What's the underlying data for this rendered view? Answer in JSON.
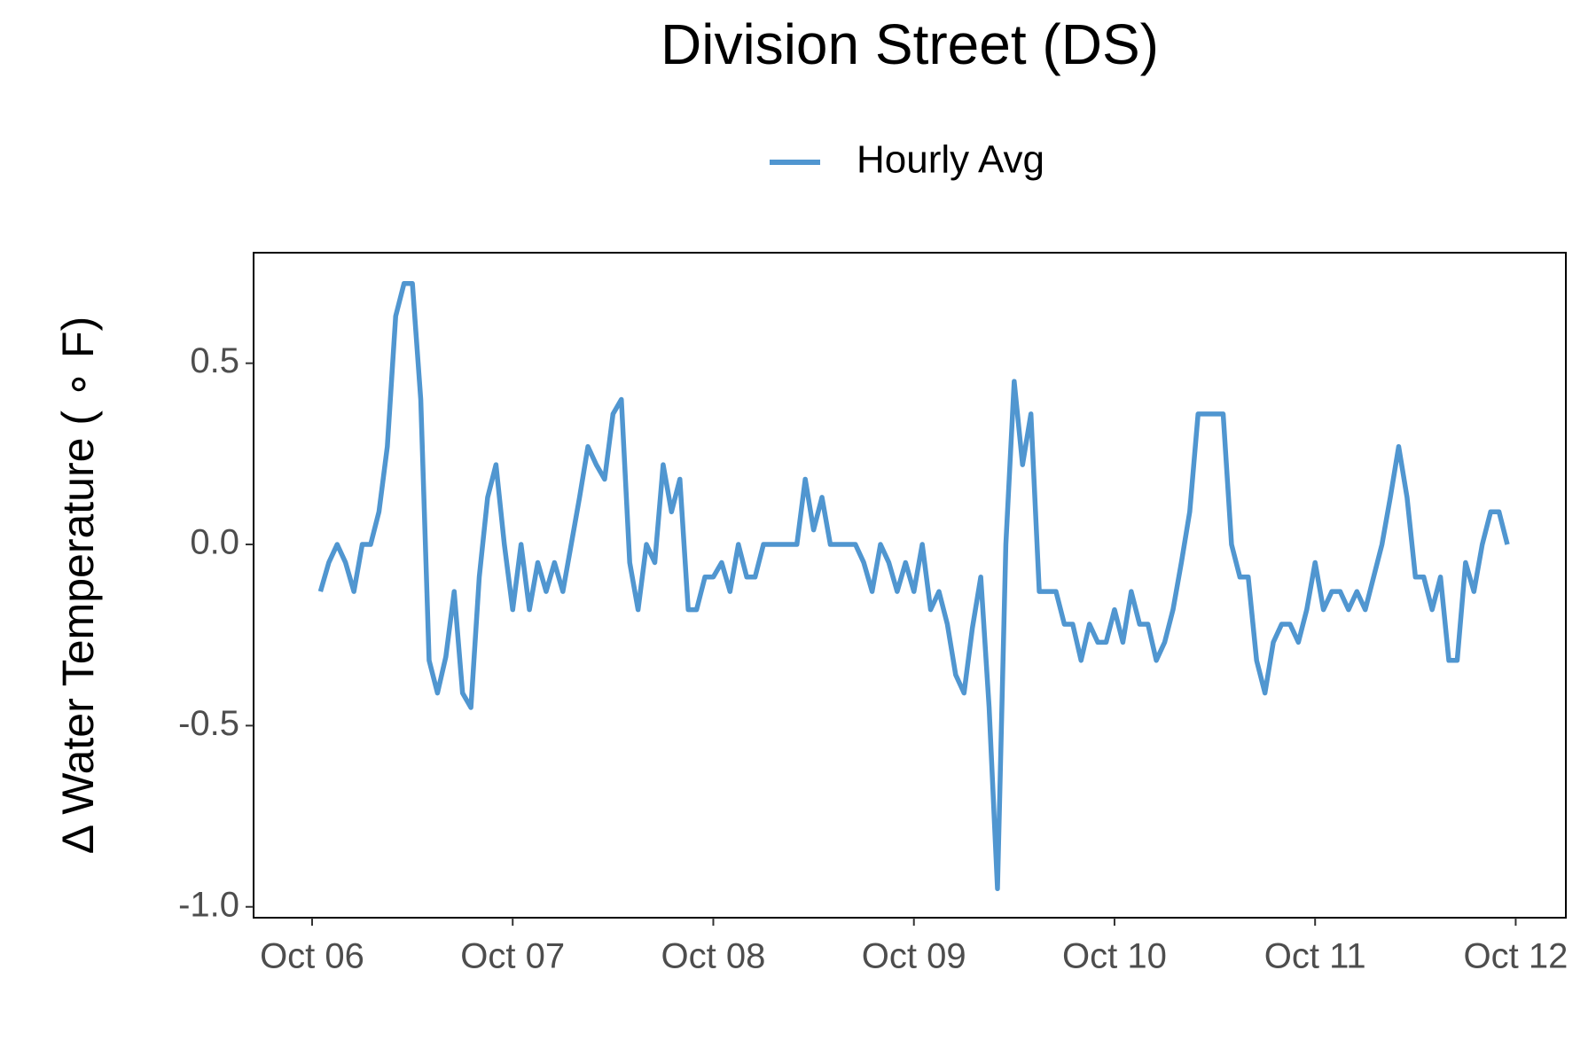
{
  "chart_data": {
    "type": "line",
    "title": "Division Street (DS)",
    "y_label": "Δ Water Temperature ( ∘ F)",
    "x": [
      1,
      2,
      3,
      4,
      5,
      6,
      7,
      8,
      9,
      10,
      11,
      12,
      13,
      14,
      15,
      16,
      17,
      18,
      19,
      20,
      21,
      22,
      23,
      24,
      25,
      26,
      27,
      28,
      29,
      30,
      31,
      32,
      33,
      34,
      35,
      36,
      37,
      38,
      39,
      40,
      41,
      42,
      43,
      44,
      45,
      46,
      47,
      48,
      49,
      50,
      51,
      52,
      53,
      54,
      55,
      56,
      57,
      58,
      59,
      60,
      61,
      62,
      63,
      64,
      65,
      66,
      67,
      68,
      69,
      70,
      71,
      72,
      73,
      74,
      75,
      76,
      77,
      78,
      79,
      80,
      81,
      82,
      83,
      84,
      85,
      86,
      87,
      88,
      89,
      90,
      91,
      92,
      93,
      94,
      95,
      96,
      97,
      98,
      99,
      100,
      101,
      102,
      103,
      104,
      105,
      106,
      107,
      108,
      109,
      110,
      111,
      112,
      113,
      114,
      115,
      116,
      117,
      118,
      119,
      120,
      121,
      122,
      123,
      124,
      125,
      126,
      127,
      128,
      129,
      130,
      131,
      132,
      133,
      134,
      135,
      136,
      137,
      138,
      139,
      140,
      141,
      142,
      143
    ],
    "series": [
      {
        "name": "Hourly Avg",
        "color": "#5096d0",
        "values": [
          -0.13,
          -0.05,
          0,
          -0.05,
          -0.13,
          0,
          0,
          0.09,
          0.27,
          0.63,
          0.72,
          0.72,
          0.4,
          -0.32,
          -0.41,
          -0.31,
          -0.13,
          -0.41,
          -0.45,
          -0.09,
          0.13,
          0.22,
          0,
          -0.18,
          0,
          -0.18,
          -0.05,
          -0.13,
          -0.05,
          -0.13,
          0,
          0.13,
          0.27,
          0.22,
          0.18,
          0.36,
          0.4,
          -0.05,
          -0.18,
          0,
          -0.05,
          0.22,
          0.09,
          0.18,
          -0.18,
          -0.18,
          -0.09,
          -0.09,
          -0.05,
          -0.13,
          0,
          -0.09,
          -0.09,
          0,
          0,
          0,
          0,
          0,
          0.18,
          0.04,
          0.13,
          0,
          0,
          0,
          0,
          -0.05,
          -0.13,
          0,
          -0.05,
          -0.13,
          -0.05,
          -0.13,
          0,
          -0.18,
          -0.13,
          -0.22,
          -0.36,
          -0.41,
          -0.23,
          -0.09,
          -0.45,
          -0.95,
          0,
          0.45,
          0.22,
          0.36,
          -0.13,
          -0.13,
          -0.13,
          -0.22,
          -0.22,
          -0.32,
          -0.22,
          -0.27,
          -0.27,
          -0.18,
          -0.27,
          -0.13,
          -0.22,
          -0.22,
          -0.32,
          -0.27,
          -0.18,
          -0.05,
          0.09,
          0.36,
          0.36,
          0.36,
          0.36,
          0,
          -0.09,
          -0.09,
          -0.32,
          -0.41,
          -0.27,
          -0.22,
          -0.22,
          -0.27,
          -0.18,
          -0.05,
          -0.18,
          -0.13,
          -0.13,
          -0.18,
          -0.13,
          -0.18,
          -0.09,
          0,
          0.13,
          0.27,
          0.13,
          -0.09,
          -0.09,
          -0.18,
          -0.09,
          -0.32,
          -0.32,
          -0.05,
          -0.13,
          0,
          0.09,
          0.09,
          0
        ]
      }
    ],
    "xlim": [
      -7,
      150
    ],
    "xticks": [
      {
        "value": 0,
        "label": "Oct 06"
      },
      {
        "value": 24,
        "label": "Oct 07"
      },
      {
        "value": 48,
        "label": "Oct 08"
      },
      {
        "value": 72,
        "label": "Oct 09"
      },
      {
        "value": 96,
        "label": "Oct 10"
      },
      {
        "value": 120,
        "label": "Oct 11"
      },
      {
        "value": 144,
        "label": "Oct 12"
      }
    ],
    "ylim": [
      -1.03,
      0.805
    ],
    "yticks": [
      {
        "value": -1,
        "label": "-1.0"
      },
      {
        "value": -0.5,
        "label": "-0.5"
      },
      {
        "value": 0,
        "label": "0.0"
      },
      {
        "value": 0.5,
        "label": "0.5"
      }
    ],
    "grid": false,
    "legend": "top"
  }
}
